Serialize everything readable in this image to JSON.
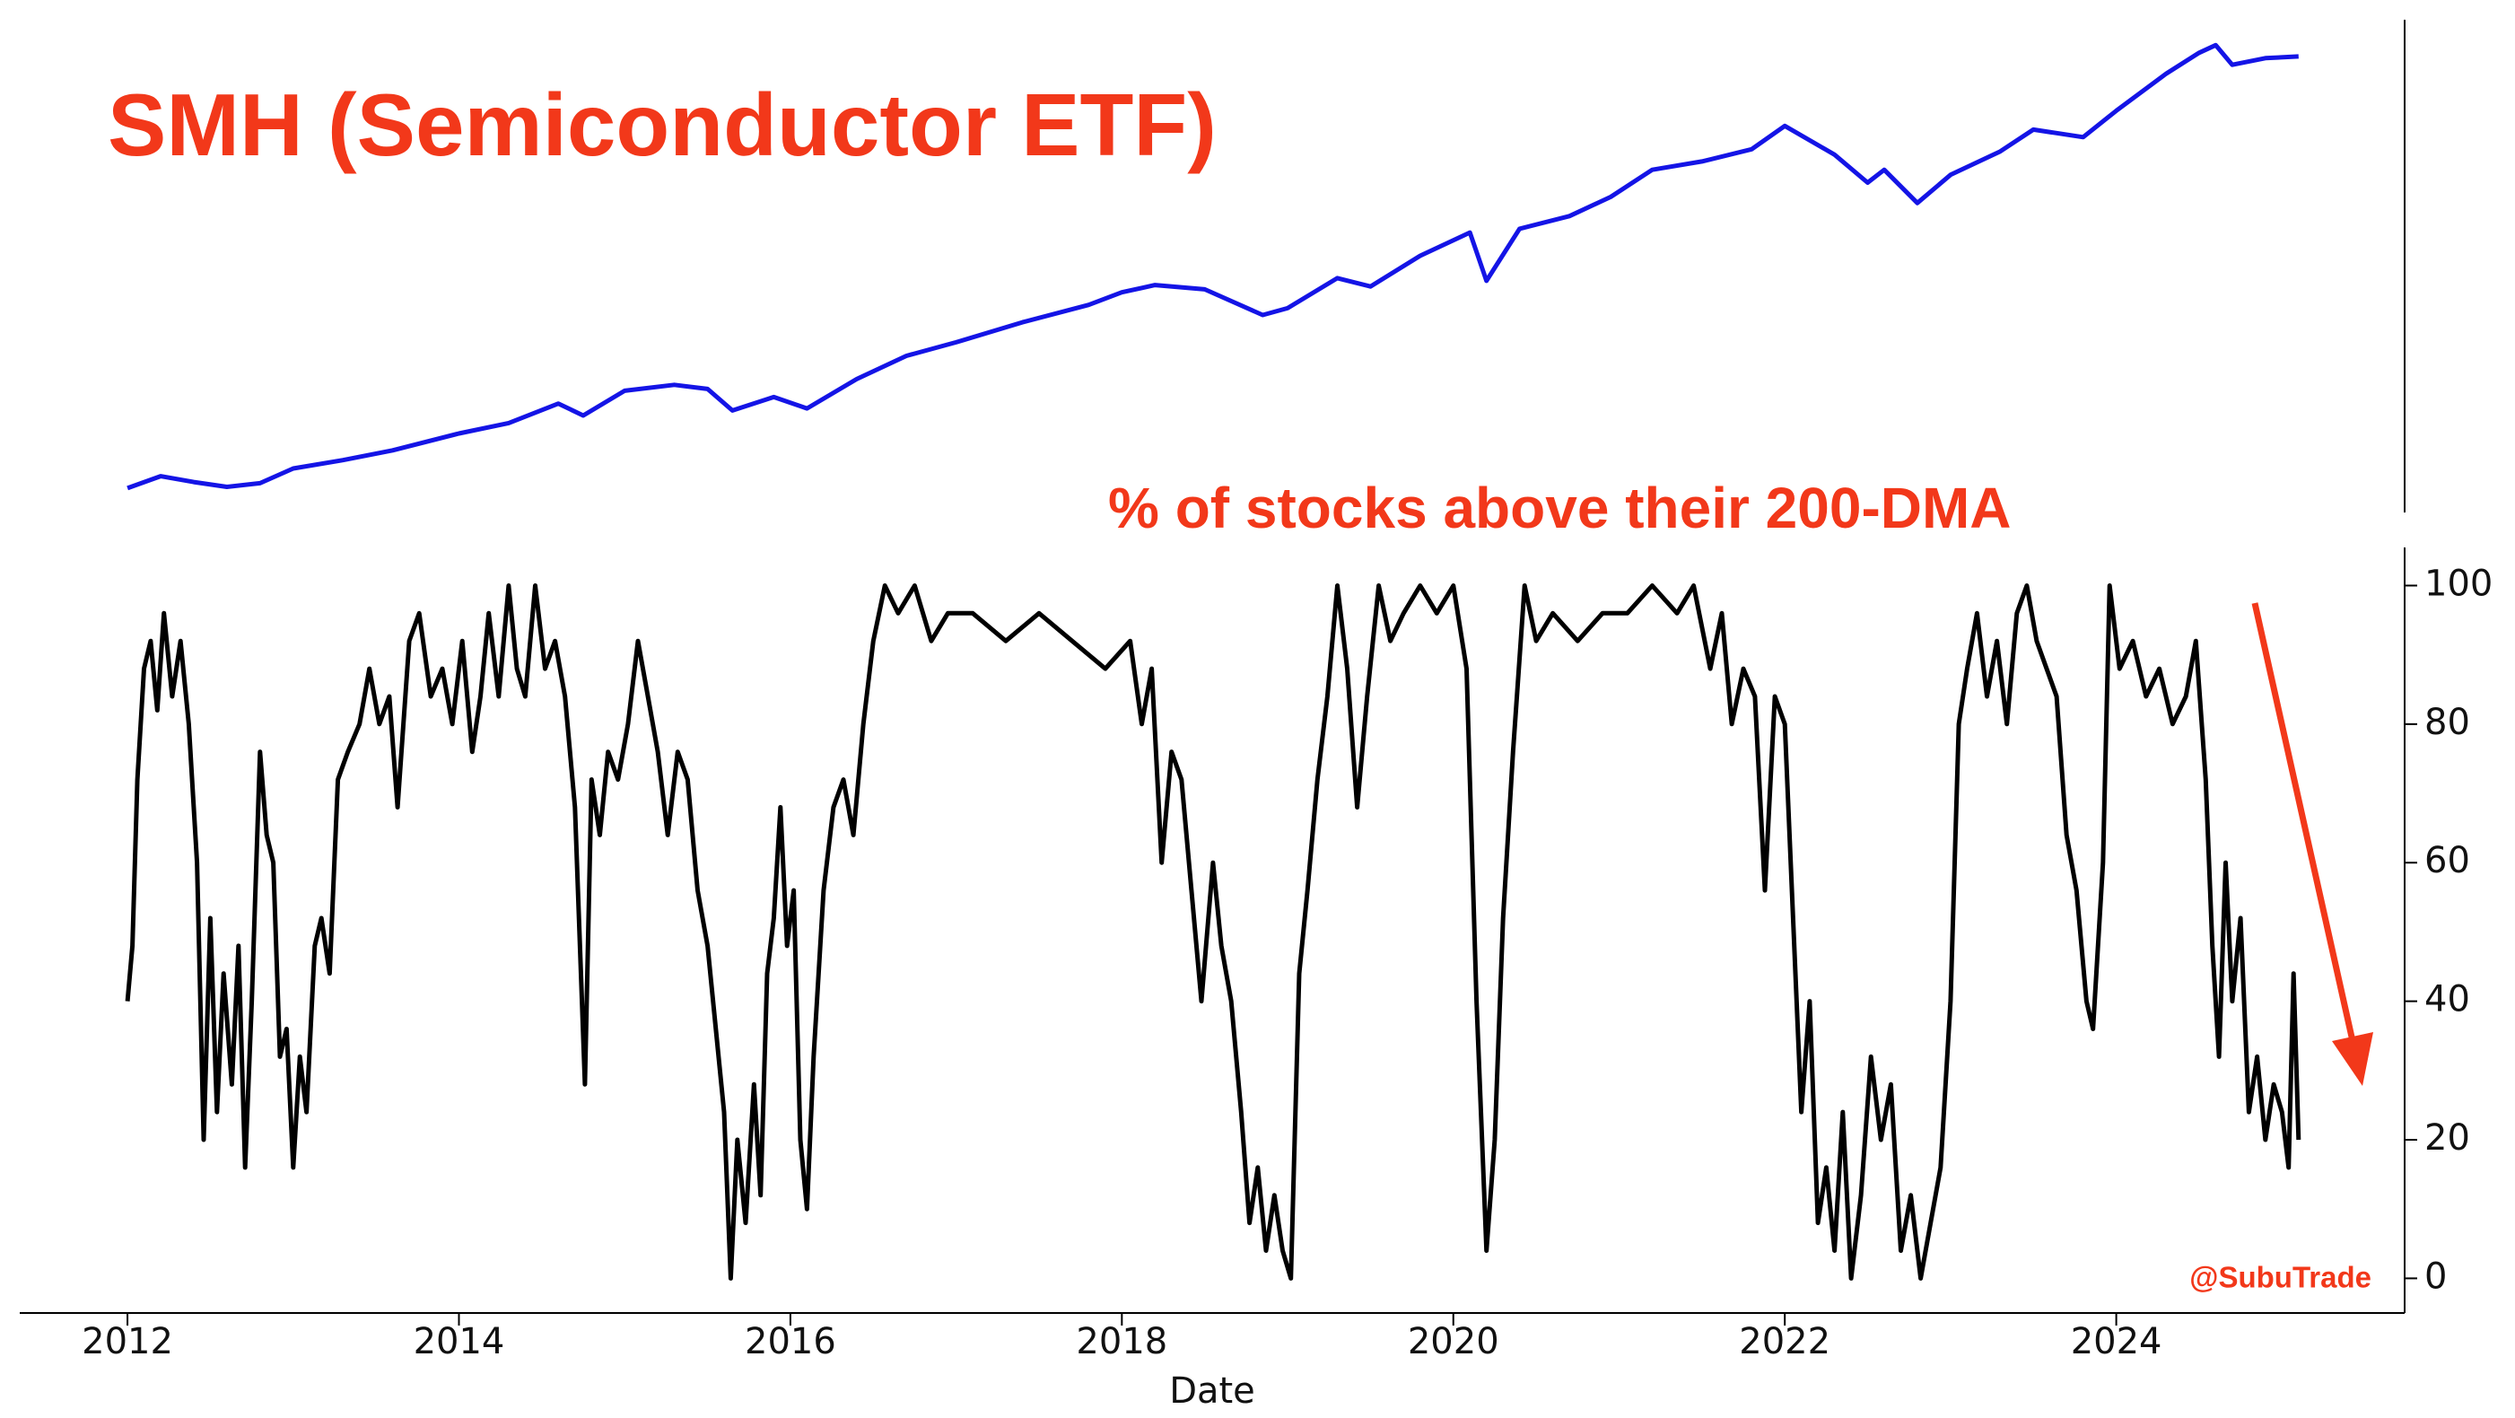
{
  "chart_data": [
    {
      "type": "line",
      "title": "SMH (Semiconductor ETF)",
      "log_scale": true,
      "color": "#1414e6",
      "xlim": [
        2011.35,
        2025.74
      ],
      "ylim": [
        9.3,
        333
      ],
      "x": [
        2012.0,
        2012.2,
        2012.4,
        2012.6,
        2012.8,
        2013.0,
        2013.3,
        2013.6,
        2014.0,
        2014.3,
        2014.6,
        2014.75,
        2015.0,
        2015.3,
        2015.5,
        2015.65,
        2015.9,
        2016.1,
        2016.4,
        2016.7,
        2017.0,
        2017.4,
        2017.8,
        2018.0,
        2018.2,
        2018.5,
        2018.85,
        2019.0,
        2019.3,
        2019.5,
        2019.8,
        2020.1,
        2020.2,
        2020.4,
        2020.7,
        2020.95,
        2021.2,
        2021.5,
        2021.8,
        2022.0,
        2022.3,
        2022.5,
        2022.6,
        2022.8,
        2023.0,
        2023.3,
        2023.5,
        2023.8,
        2024.0,
        2024.3,
        2024.5,
        2024.6,
        2024.7,
        2024.9,
        2025.1
      ],
      "values": [
        11.1,
        12.1,
        11.6,
        11.2,
        11.5,
        12.8,
        13.6,
        14.6,
        16.5,
        17.8,
        20.5,
        18.8,
        22.5,
        23.5,
        22.8,
        19.5,
        21.5,
        19.8,
        24.5,
        29,
        32,
        37,
        42,
        46,
        48.5,
        47,
        39,
        41,
        51,
        48,
        60,
        71,
        50,
        73,
        80,
        92,
        112,
        119,
        130,
        154,
        125,
        102,
        112,
        88,
        108,
        128,
        150,
        142,
        172,
        225,
        262,
        277,
        240,
        252,
        255
      ]
    },
    {
      "type": "line",
      "title": "% of stocks above their 200-DMA",
      "annotation": "@SubuTrade",
      "xlabel": "Date",
      "color": "#000000",
      "xlim": [
        2011.35,
        2025.74
      ],
      "xticks": [
        2012,
        2014,
        2016,
        2018,
        2020,
        2022,
        2024
      ],
      "ylim": [
        -5,
        105.5
      ],
      "yticks": [
        0,
        20,
        40,
        60,
        80,
        100
      ],
      "x": [
        2012.0,
        2012.03,
        2012.06,
        2012.1,
        2012.14,
        2012.18,
        2012.22,
        2012.27,
        2012.32,
        2012.37,
        2012.42,
        2012.46,
        2012.5,
        2012.54,
        2012.58,
        2012.63,
        2012.67,
        2012.71,
        2012.75,
        2012.8,
        2012.84,
        2012.88,
        2012.92,
        2012.96,
        2013.0,
        2013.04,
        2013.08,
        2013.13,
        2013.17,
        2013.22,
        2013.27,
        2013.33,
        2013.4,
        2013.46,
        2013.52,
        2013.58,
        2013.63,
        2013.7,
        2013.76,
        2013.83,
        2013.9,
        2013.96,
        2014.02,
        2014.08,
        2014.13,
        2014.18,
        2014.24,
        2014.3,
        2014.35,
        2014.4,
        2014.46,
        2014.52,
        2014.58,
        2014.64,
        2014.7,
        2014.76,
        2014.8,
        2014.85,
        2014.9,
        2014.96,
        2015.02,
        2015.08,
        2015.14,
        2015.2,
        2015.26,
        2015.32,
        2015.38,
        2015.44,
        2015.5,
        2015.55,
        2015.6,
        2015.64,
        2015.68,
        2015.73,
        2015.78,
        2015.82,
        2015.86,
        2015.9,
        2015.94,
        2015.98,
        2016.02,
        2016.06,
        2016.1,
        2016.14,
        2016.2,
        2016.26,
        2016.32,
        2016.38,
        2016.44,
        2016.5,
        2016.57,
        2016.65,
        2016.75,
        2016.85,
        2016.95,
        2017.1,
        2017.3,
        2017.5,
        2017.7,
        2017.9,
        2018.05,
        2018.12,
        2018.18,
        2018.24,
        2018.3,
        2018.36,
        2018.42,
        2018.48,
        2018.55,
        2018.6,
        2018.66,
        2018.72,
        2018.77,
        2018.82,
        2018.87,
        2018.92,
        2018.97,
        2019.02,
        2019.07,
        2019.12,
        2019.18,
        2019.24,
        2019.3,
        2019.36,
        2019.42,
        2019.48,
        2019.55,
        2019.62,
        2019.7,
        2019.8,
        2019.9,
        2020.0,
        2020.08,
        2020.14,
        2020.2,
        2020.25,
        2020.3,
        2020.36,
        2020.43,
        2020.5,
        2020.6,
        2020.75,
        2020.9,
        2021.05,
        2021.2,
        2021.35,
        2021.45,
        2021.55,
        2021.62,
        2021.68,
        2021.75,
        2021.82,
        2021.88,
        2021.94,
        2022.0,
        2022.05,
        2022.1,
        2022.15,
        2022.2,
        2022.25,
        2022.3,
        2022.35,
        2022.4,
        2022.46,
        2022.52,
        2022.58,
        2022.64,
        2022.7,
        2022.76,
        2022.82,
        2022.88,
        2022.94,
        2023.0,
        2023.05,
        2023.1,
        2023.16,
        2023.22,
        2023.28,
        2023.34,
        2023.4,
        2023.46,
        2023.52,
        2023.58,
        2023.64,
        2023.7,
        2023.76,
        2023.82,
        2023.86,
        2023.92,
        2023.96,
        2024.02,
        2024.1,
        2024.18,
        2024.26,
        2024.34,
        2024.42,
        2024.48,
        2024.54,
        2024.58,
        2024.62,
        2024.66,
        2024.7,
        2024.75,
        2024.8,
        2024.85,
        2024.9,
        2024.95,
        2025.0,
        2025.04,
        2025.07,
        2025.1
      ],
      "values": [
        40,
        48,
        72,
        88,
        92,
        82,
        96,
        84,
        92,
        80,
        60,
        20,
        52,
        24,
        44,
        28,
        48,
        16,
        40,
        76,
        64,
        60,
        32,
        36,
        16,
        32,
        24,
        48,
        52,
        44,
        72,
        76,
        80,
        88,
        80,
        84,
        68,
        92,
        96,
        84,
        88,
        80,
        92,
        76,
        84,
        96,
        84,
        100,
        88,
        84,
        100,
        88,
        92,
        84,
        68,
        28,
        72,
        64,
        76,
        72,
        80,
        92,
        84,
        76,
        64,
        76,
        72,
        56,
        48,
        36,
        24,
        0,
        20,
        8,
        28,
        12,
        44,
        52,
        68,
        48,
        56,
        20,
        10,
        32,
        56,
        68,
        72,
        64,
        80,
        92,
        100,
        96,
        100,
        92,
        96,
        96,
        92,
        96,
        92,
        88,
        92,
        80,
        88,
        60,
        76,
        72,
        56,
        40,
        60,
        48,
        40,
        24,
        8,
        16,
        4,
        12,
        4,
        0,
        44,
        56,
        72,
        84,
        100,
        88,
        68,
        84,
        100,
        92,
        96,
        100,
        96,
        100,
        88,
        40,
        4,
        20,
        52,
        76,
        100,
        92,
        96,
        92,
        96,
        96,
        100,
        96,
        100,
        88,
        96,
        80,
        88,
        84,
        56,
        84,
        80,
        52,
        24,
        40,
        8,
        16,
        4,
        24,
        0,
        12,
        32,
        20,
        28,
        4,
        12,
        0,
        8,
        16,
        40,
        80,
        88,
        96,
        84,
        92,
        80,
        96,
        100,
        92,
        88,
        84,
        64,
        56,
        40,
        36,
        60,
        100,
        88,
        92,
        84,
        88,
        80,
        84,
        92,
        72,
        48,
        32,
        60,
        40,
        52,
        24,
        32,
        20,
        28,
        24,
        16,
        44,
        20
      ]
    }
  ]
}
